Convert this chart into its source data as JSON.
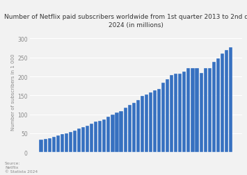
{
  "title": "Number of Netflix paid subscribers worldwide from 1st quarter 2013 to 2nd quarter\n2024 (in millions)",
  "ylabel": "Number of subscribers in 1 000",
  "bar_color": "#3670c0",
  "background_color": "#f2f2f2",
  "plot_bg_color": "#f2f2f2",
  "source_text": "Source:\nNetflix\n© Statista 2024",
  "ylim": [
    0,
    320
  ],
  "yticks": [
    0,
    50,
    100,
    150,
    200,
    250,
    300
  ],
  "ytick_labels": [
    "0",
    "50",
    "100",
    "150",
    "200",
    "250",
    "300"
  ],
  "values": [
    33.42,
    35.67,
    37.25,
    40.33,
    44.35,
    48.44,
    50.05,
    53.06,
    57.39,
    62.28,
    65.55,
    69.17,
    74.76,
    81.5,
    83.0,
    86.78,
    93.8,
    98.75,
    104.02,
    109.25,
    117.58,
    125.04,
    130.14,
    137.1,
    148.86,
    151.56,
    158.34,
    163.95,
    167.09,
    182.86,
    193.03,
    203.66,
    207.64,
    208.09,
    213.56,
    221.84,
    221.64,
    222.06,
    209.18,
    221.84,
    221.64,
    238.39,
    247.15,
    260.28,
    269.6,
    277.65
  ],
  "title_fontsize": 6.5,
  "tick_fontsize": 5.5,
  "ylabel_fontsize": 5.0,
  "source_fontsize": 4.2
}
